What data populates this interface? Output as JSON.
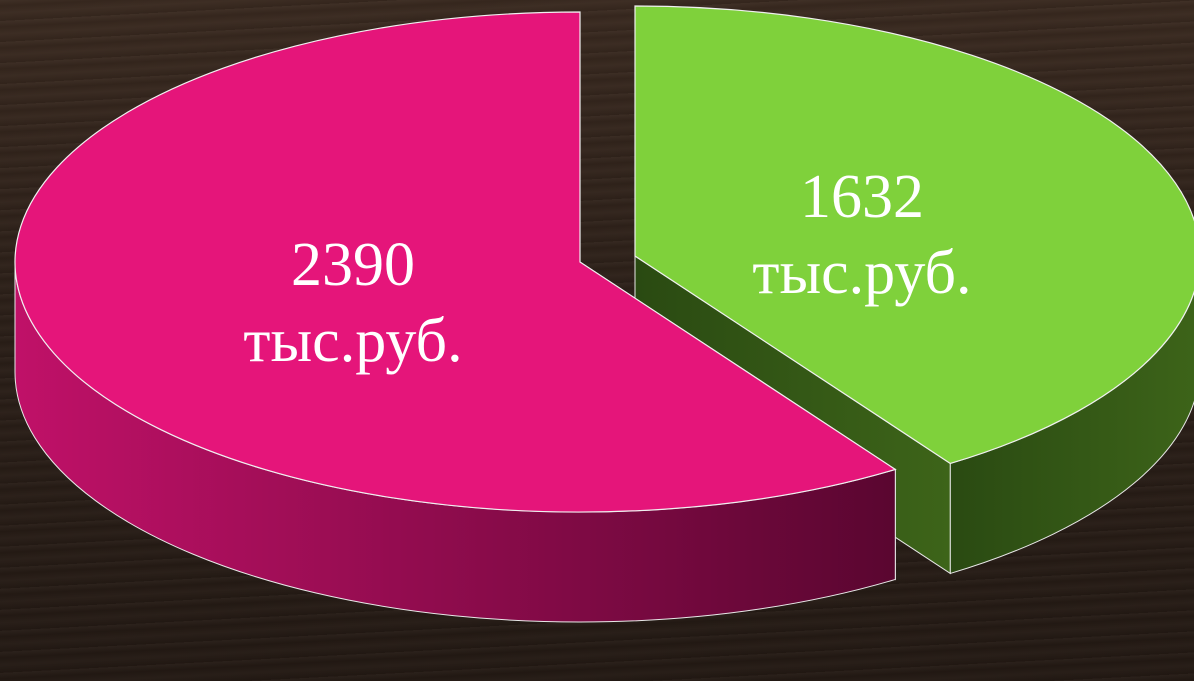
{
  "chart_data": {
    "type": "pie",
    "values": [
      1632,
      2390
    ],
    "value_labels": [
      "1632 тыс.руб.",
      "2390 тыс.руб."
    ],
    "colors": [
      "#7fd13b",
      "#e5157a"
    ]
  }
}
